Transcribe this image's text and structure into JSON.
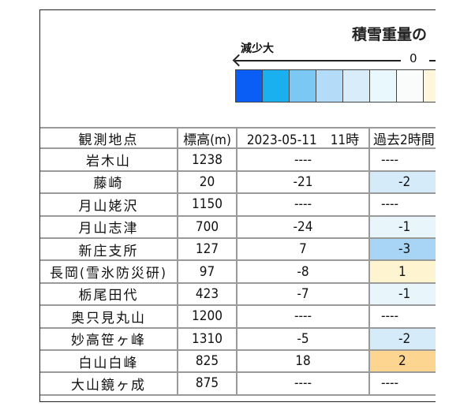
{
  "title": "積雪重量の",
  "legend": {
    "decrease_label": "減少大",
    "zero_label": "0",
    "swatches": [
      "#0a5ef5",
      "#1ab0f0",
      "#7cc8f5",
      "#b4dcf8",
      "#d8ecfa",
      "#e8f8fc",
      "#fafcfc",
      "#fff6dc"
    ]
  },
  "table": {
    "headers": [
      "観測地点",
      "標高(m)",
      "2023-05-11　11時",
      "過去2時間"
    ],
    "rows": [
      {
        "station": "岩木山",
        "elevation": "1238",
        "value": "----",
        "change": "----",
        "color": "#ffffff"
      },
      {
        "station": "藤崎",
        "elevation": "20",
        "value": "-21",
        "change": "-2",
        "color": "#d6ebfa"
      },
      {
        "station": "月山姥沢",
        "elevation": "1150",
        "value": "----",
        "change": "----",
        "color": "#ffffff"
      },
      {
        "station": "月山志津",
        "elevation": "700",
        "value": "-24",
        "change": "-1",
        "color": "#e8f6fc"
      },
      {
        "station": "新庄支所",
        "elevation": "127",
        "value": "7",
        "change": "-3",
        "color": "#a8d4f5"
      },
      {
        "station": "長岡(雪氷防災研)",
        "elevation": "97",
        "value": "-8",
        "change": "1",
        "color": "#fff4d0"
      },
      {
        "station": "栃尾田代",
        "elevation": "423",
        "value": "-7",
        "change": "-1",
        "color": "#e8f6fc"
      },
      {
        "station": "奥只見丸山",
        "elevation": "1200",
        "value": "----",
        "change": "----",
        "color": "#ffffff"
      },
      {
        "station": "妙高笹ヶ峰",
        "elevation": "1310",
        "value": "-5",
        "change": "-2",
        "color": "#d6ebfa"
      },
      {
        "station": "白山白峰",
        "elevation": "825",
        "value": "18",
        "change": "2",
        "color": "#fcd590"
      },
      {
        "station": "大山鏡ヶ成",
        "elevation": "875",
        "value": "----",
        "change": "----",
        "color": "#ffffff"
      }
    ]
  }
}
